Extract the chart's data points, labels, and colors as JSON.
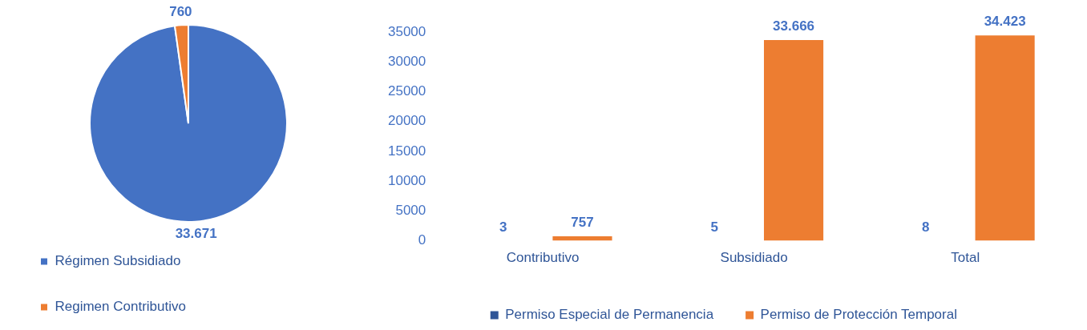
{
  "chart_data": [
    {
      "type": "pie",
      "categories": [
        "Régimen Subsidiado",
        "Regimen Contributivo"
      ],
      "values": [
        33671,
        760
      ],
      "colors": [
        "#4472c4",
        "#ed7d31"
      ],
      "value_labels": [
        "33.671",
        "760"
      ],
      "legend": "bottom left"
    },
    {
      "type": "bar",
      "categories": [
        "Contributivo",
        "Subsidiado",
        "Total"
      ],
      "series": [
        {
          "name": "Permiso Especial de Permanencia",
          "color": "#2f5597",
          "values": [
            3,
            5,
            8
          ],
          "value_labels": [
            "3",
            "5",
            "8"
          ]
        },
        {
          "name": "Permiso de Protección Temporal",
          "color": "#ed7d31",
          "values": [
            757,
            33666,
            34423
          ],
          "value_labels": [
            "757",
            "33.666",
            "34.423"
          ]
        }
      ],
      "ylim": [
        0,
        35000
      ],
      "yticks": [
        0,
        5000,
        10000,
        15000,
        20000,
        25000,
        30000,
        35000
      ],
      "grid": false,
      "legend": "bottom"
    }
  ]
}
